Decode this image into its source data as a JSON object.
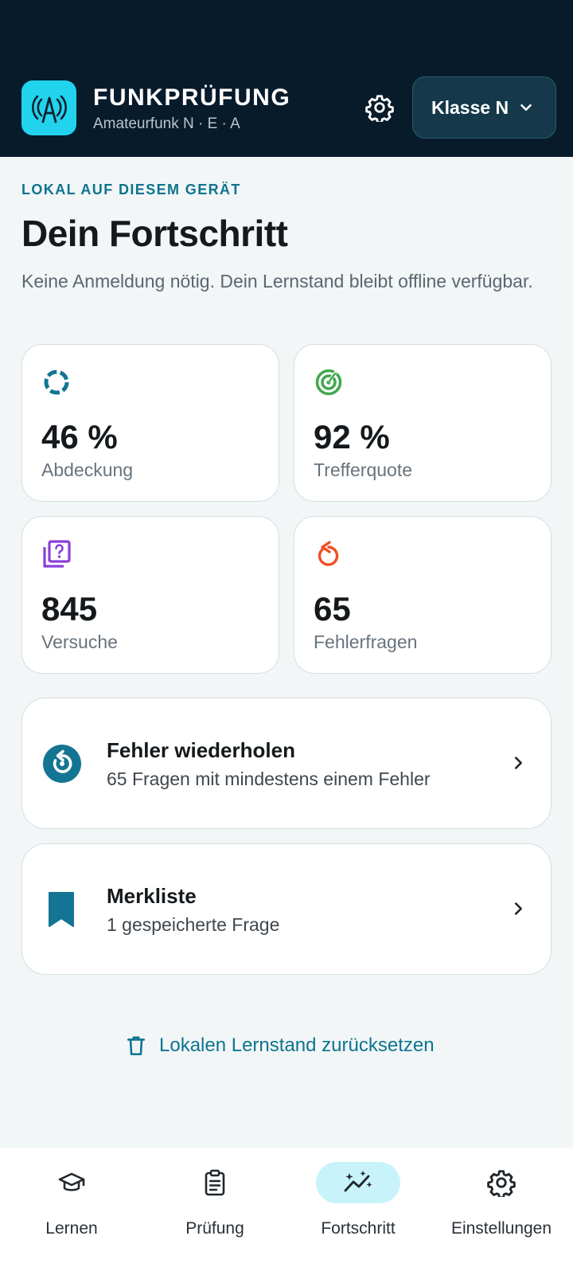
{
  "header": {
    "app_title": "FUNKPRÜFUNG",
    "app_subtitle": "Amateurfunk N · E · A",
    "logo_icon": "radio-tower-icon",
    "settings_icon": "gear-icon",
    "class_select": {
      "value": "Klasse N",
      "icon": "chevron-down-icon"
    }
  },
  "main": {
    "eyebrow": "LOKAL AUF DIESEM GERÄT",
    "title": "Dein Fortschritt",
    "description": "Keine Anmeldung nötig. Dein Lernstand bleibt offline verfügbar."
  },
  "stats": [
    {
      "value": "46 %",
      "label": "Abdeckung",
      "icon": "progress-ring-icon",
      "color": "#137593"
    },
    {
      "value": "92 %",
      "label": "Trefferquote",
      "icon": "target-icon",
      "color": "#43a84f"
    },
    {
      "value": "845",
      "label": "Versuche",
      "icon": "question-stack-icon",
      "color": "#8b3fd9"
    },
    {
      "value": "65",
      "label": "Fehlerfragen",
      "icon": "retry-icon",
      "color": "#f04e23"
    }
  ],
  "actions": [
    {
      "title": "Fehler wiederholen",
      "subtitle": "65 Fragen mit mindestens einem Fehler",
      "icon": "replay-circle-icon"
    },
    {
      "title": "Merkliste",
      "subtitle": "1 gespeicherte Frage",
      "icon": "bookmark-icon"
    }
  ],
  "reset": {
    "label": "Lokalen Lernstand zurücksetzen",
    "icon": "trash-icon"
  },
  "nav": {
    "items": [
      {
        "label": "Lernen",
        "icon": "graduation-cap-icon"
      },
      {
        "label": "Prüfung",
        "icon": "clipboard-icon"
      },
      {
        "label": "Fortschritt",
        "icon": "trend-sparkle-icon",
        "active": true
      },
      {
        "label": "Einstellungen",
        "icon": "gear-icon"
      }
    ]
  },
  "colors": {
    "header_bg": "#081b2b",
    "accent": "#0e7490",
    "logo_bg": "#22d3ee",
    "nav_active_bg": "#c9f3fb"
  }
}
